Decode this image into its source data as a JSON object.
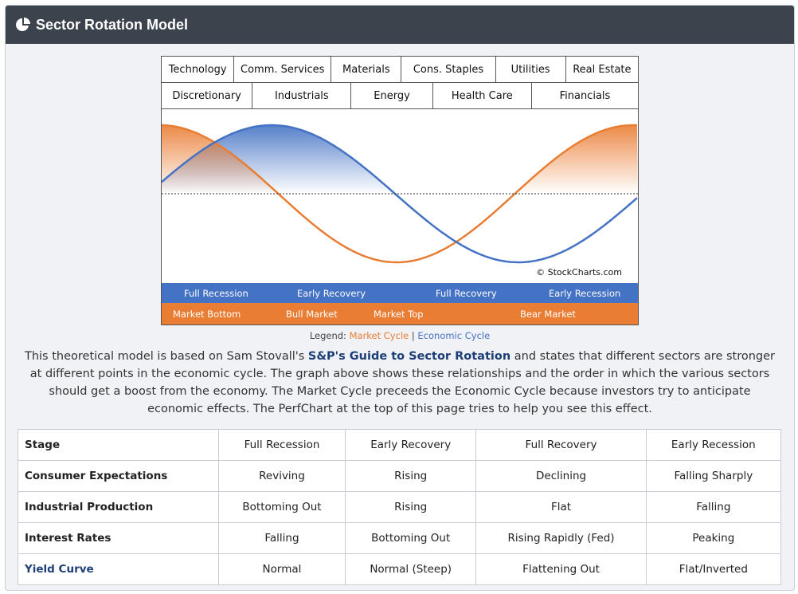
{
  "header": {
    "title": "Sector Rotation Model",
    "icon": "pie-chart-icon"
  },
  "sectors_row1": [
    "Technology",
    "Comm. Services",
    "Materials",
    "Cons. Staples",
    "Utilities",
    "Real Estate"
  ],
  "sectors_row2": [
    "Discretionary",
    "Industrials",
    "Energy",
    "Health Care",
    "Financials"
  ],
  "copyright": "© StockCharts.com",
  "economic_stages": [
    "Full Recession",
    "Early Recovery",
    "Full Recovery",
    "Early Recession"
  ],
  "market_stages": [
    "Market Bottom",
    "Bull Market",
    "Market Top",
    "Bear Market"
  ],
  "legend": {
    "label": "Legend:",
    "market": "Market Cycle",
    "sep": "|",
    "economic": "Economic Cycle"
  },
  "colors": {
    "market": "#e97d33",
    "economic": "#4472c4"
  },
  "description": {
    "pre": "This theoretical model is based on Sam Stovall's ",
    "link": "S&P's Guide to Sector Rotation",
    "post": " and states that different sectors are stronger at different points in the economic cycle. The graph above shows these relationships and the order in which the various sectors should get a boost from the economy. The Market Cycle preceeds the Economic Cycle because investors try to anticipate economic effects. The PerfChart at the top of this page tries to help you see this effect."
  },
  "table": {
    "rows": [
      [
        "Stage",
        "Full Recession",
        "Early Recovery",
        "Full Recovery",
        "Early Recession"
      ],
      [
        "Consumer Expectations",
        "Reviving",
        "Rising",
        "Declining",
        "Falling Sharply"
      ],
      [
        "Industrial Production",
        "Bottoming Out",
        "Rising",
        "Flat",
        "Falling"
      ],
      [
        "Interest Rates",
        "Falling",
        "Bottoming Out",
        "Rising Rapidly (Fed)",
        "Peaking"
      ],
      [
        "Yield Curve",
        "Normal",
        "Normal (Steep)",
        "Flattening Out",
        "Flat/Inverted"
      ]
    ]
  }
}
